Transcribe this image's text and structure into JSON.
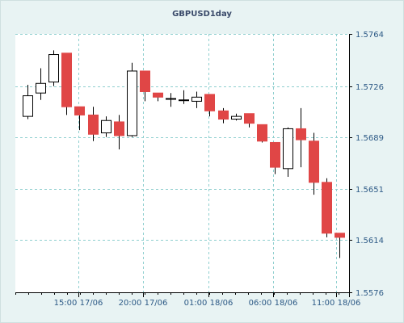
{
  "chart_data": {
    "type": "candlestick",
    "title": "GBPUSD1day",
    "y_ticks": [
      1.5764,
      1.5726,
      1.5689,
      1.5651,
      1.5614,
      1.5576
    ],
    "ylim": [
      1.5576,
      1.5764
    ],
    "x_tick_labels": [
      "15:00 17/06",
      "20:00 17/06",
      "01:00 18/06",
      "06:00 18/06",
      "11:00 18/06"
    ],
    "grid": true,
    "colors": {
      "up": "#ffffff",
      "down": "#e04646",
      "wick": "#000000",
      "grid": "#8fcfcf",
      "plot_bg": "#ffffff"
    },
    "candles": [
      {
        "o": 1.5704,
        "h": 1.5727,
        "l": 1.5702,
        "c": 1.5719
      },
      {
        "o": 1.5721,
        "h": 1.5739,
        "l": 1.5716,
        "c": 1.5728
      },
      {
        "o": 1.5729,
        "h": 1.5752,
        "l": 1.5726,
        "c": 1.5749
      },
      {
        "o": 1.575,
        "h": 1.575,
        "l": 1.5705,
        "c": 1.5711
      },
      {
        "o": 1.5711,
        "h": 1.5711,
        "l": 1.5694,
        "c": 1.5705
      },
      {
        "o": 1.5705,
        "h": 1.5711,
        "l": 1.5686,
        "c": 1.5691
      },
      {
        "o": 1.5692,
        "h": 1.5704,
        "l": 1.5689,
        "c": 1.5701
      },
      {
        "o": 1.57,
        "h": 1.5705,
        "l": 1.568,
        "c": 1.569
      },
      {
        "o": 1.569,
        "h": 1.5743,
        "l": 1.5689,
        "c": 1.5737
      },
      {
        "o": 1.5737,
        "h": 1.5737,
        "l": 1.5715,
        "c": 1.5722
      },
      {
        "o": 1.5721,
        "h": 1.5721,
        "l": 1.5715,
        "c": 1.5718
      },
      {
        "o": 1.5717,
        "h": 1.5721,
        "l": 1.5711,
        "c": 1.5717
      },
      {
        "o": 1.5716,
        "h": 1.5723,
        "l": 1.5713,
        "c": 1.5716
      },
      {
        "o": 1.5715,
        "h": 1.5722,
        "l": 1.571,
        "c": 1.5718
      },
      {
        "o": 1.572,
        "h": 1.572,
        "l": 1.5704,
        "c": 1.5708
      },
      {
        "o": 1.5708,
        "h": 1.571,
        "l": 1.5699,
        "c": 1.5702
      },
      {
        "o": 1.5702,
        "h": 1.5706,
        "l": 1.5701,
        "c": 1.5704
      },
      {
        "o": 1.5706,
        "h": 1.5706,
        "l": 1.5696,
        "c": 1.5699
      },
      {
        "o": 1.5698,
        "h": 1.5698,
        "l": 1.5685,
        "c": 1.5686
      },
      {
        "o": 1.5685,
        "h": 1.5685,
        "l": 1.5662,
        "c": 1.5667
      },
      {
        "o": 1.5666,
        "h": 1.5696,
        "l": 1.566,
        "c": 1.5695
      },
      {
        "o": 1.5695,
        "h": 1.571,
        "l": 1.5667,
        "c": 1.5687
      },
      {
        "o": 1.5686,
        "h": 1.5692,
        "l": 1.5647,
        "c": 1.5656
      },
      {
        "o": 1.5656,
        "h": 1.5659,
        "l": 1.5616,
        "c": 1.5619
      },
      {
        "o": 1.5619,
        "h": 1.5619,
        "l": 1.5601,
        "c": 1.5616
      }
    ]
  }
}
